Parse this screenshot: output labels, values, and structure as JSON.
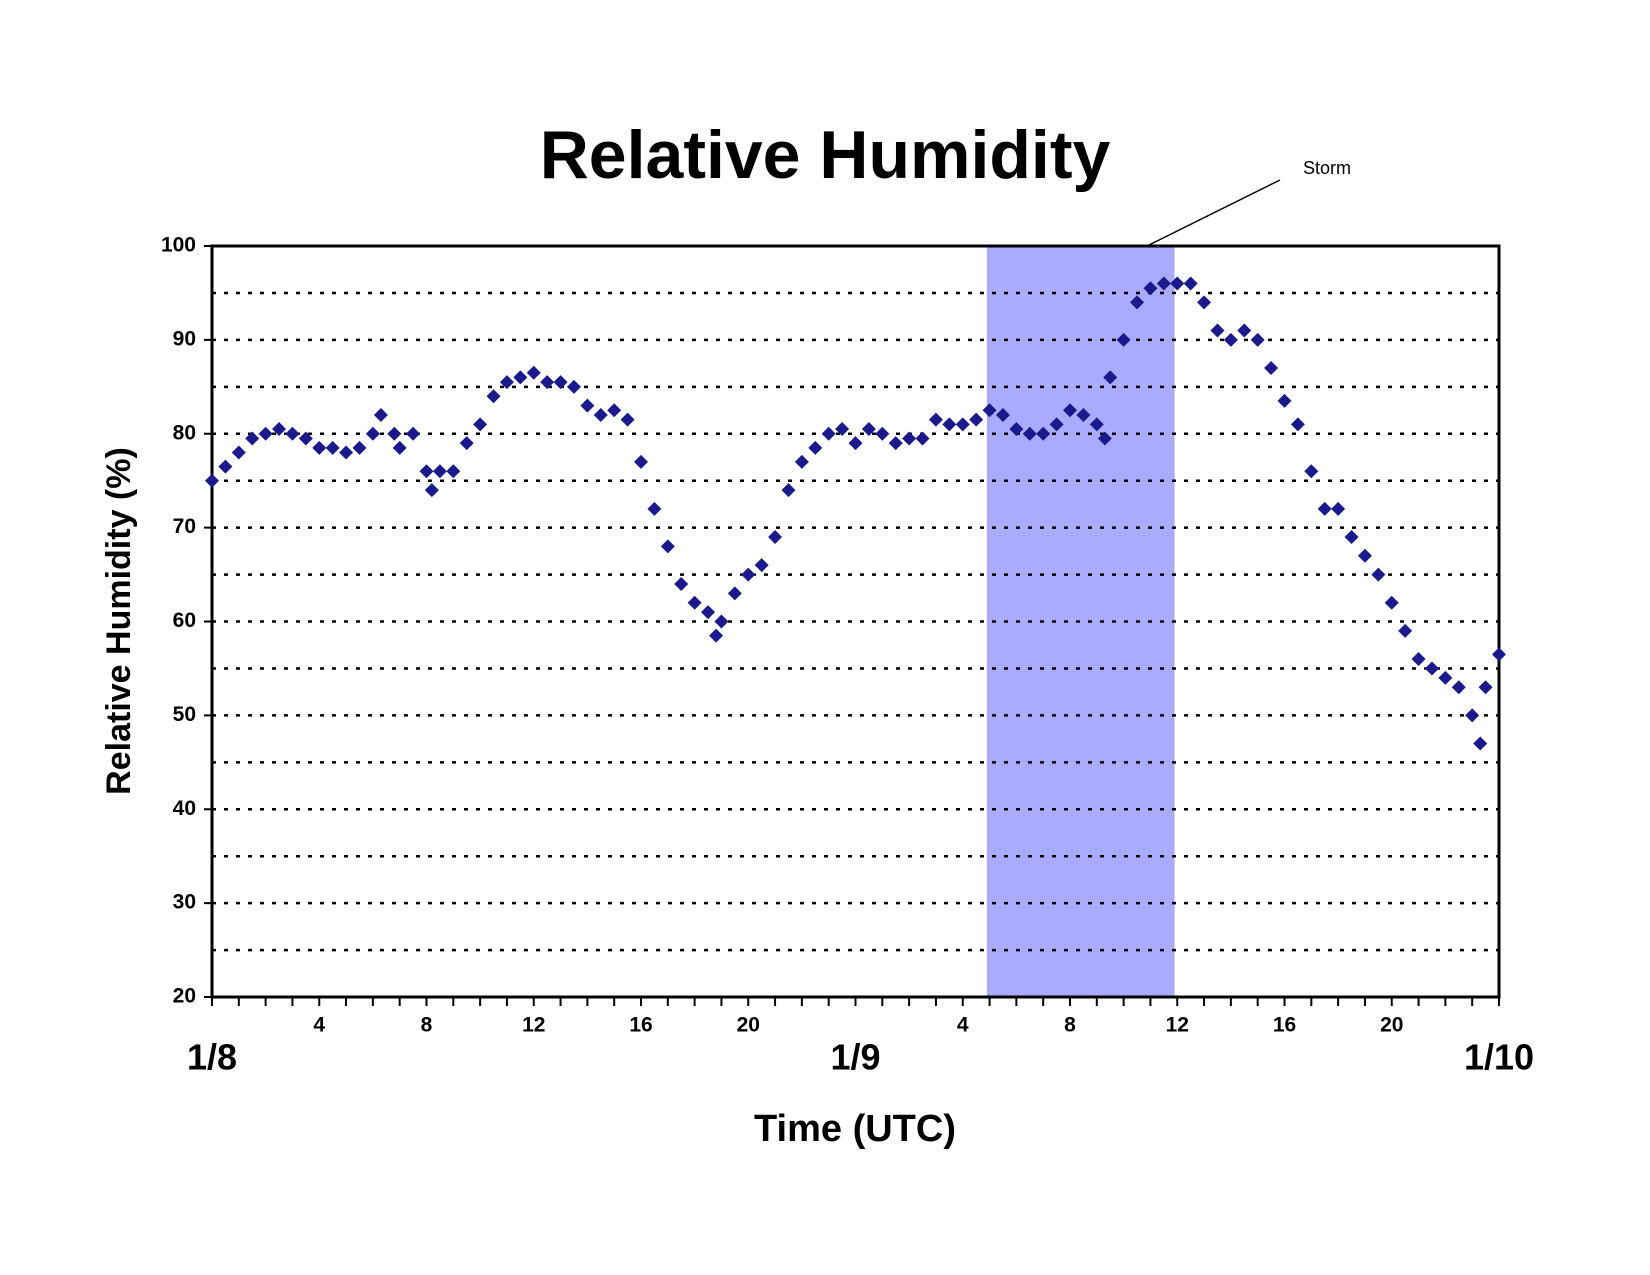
{
  "chart_data": {
    "type": "scatter",
    "title": "Relative Humidity",
    "x_label": "Time (UTC)",
    "y_label": "Relative Humidity (%)",
    "annotation": "Storm",
    "shaded_span": [
      28.9,
      35.9
    ],
    "shade_color": "#aaaaff",
    "xlim": [
      0,
      48
    ],
    "ylim": [
      20,
      100
    ],
    "yticks": [
      20,
      30,
      40,
      50,
      60,
      70,
      80,
      90,
      100
    ],
    "gridlines": [
      25,
      30,
      35,
      40,
      45,
      50,
      55,
      60,
      65,
      70,
      75,
      80,
      85,
      90,
      95
    ],
    "xticks": [
      4,
      8,
      12,
      16,
      20,
      {
        "value": 28,
        "label": "4"
      },
      {
        "value": 32,
        "label": "8"
      },
      {
        "value": 36,
        "label": "12"
      },
      {
        "value": 40,
        "label": "16"
      },
      {
        "value": 44,
        "label": "20"
      }
    ],
    "date_ticks": [
      {
        "value": 0,
        "label": "1/8"
      },
      {
        "value": 24,
        "label": "1/9"
      },
      {
        "value": 48,
        "label": "1/10"
      }
    ],
    "minor_xticks": [
      0,
      1,
      2,
      3,
      4,
      5,
      6,
      7,
      8,
      9,
      10,
      11,
      12,
      13,
      14,
      15,
      16,
      17,
      18,
      19,
      20,
      21,
      22,
      23,
      24,
      25,
      26,
      27,
      28,
      29,
      30,
      31,
      32,
      33,
      34,
      35,
      36,
      37,
      38,
      39,
      40,
      41,
      42,
      43,
      44,
      45,
      46,
      47,
      48
    ],
    "x": [
      0,
      0.5,
      1,
      1.5,
      2,
      2.5,
      3,
      3.5,
      4,
      4.5,
      5,
      5.5,
      6,
      6.3,
      6.8,
      7,
      7.5,
      8,
      8.2,
      8.5,
      9,
      9.5,
      10,
      10.5,
      11,
      11.5,
      12,
      12.5,
      13,
      13.5,
      14,
      14.5,
      15,
      15.5,
      16,
      16.5,
      17,
      17.5,
      18,
      18.5,
      18.8,
      19,
      19.5,
      20,
      20.5,
      21,
      21.5,
      22,
      22.5,
      23,
      23.5,
      24,
      24.5,
      25,
      25.5,
      26,
      26.5,
      27,
      27.5,
      28,
      28.5,
      29,
      29.5,
      30,
      30.5,
      31,
      31.5,
      32,
      32.5,
      33,
      33.3,
      33.5,
      34,
      34.5,
      35,
      35.5,
      36,
      36.5,
      37,
      37.5,
      38,
      38.5,
      39,
      39.5,
      40,
      40.5,
      41,
      41.5,
      42,
      42.5,
      43,
      43.5,
      44,
      44.5,
      45,
      45.5,
      46,
      46.5,
      47,
      47.3,
      47.5,
      48
    ],
    "series": [
      {
        "color": "#1a1a8c",
        "values": [
          75,
          76.5,
          78,
          79.5,
          80,
          80.5,
          80,
          79.5,
          78.5,
          78.5,
          78,
          78.5,
          80,
          82,
          80,
          78.5,
          80,
          76,
          74,
          76,
          76,
          79,
          81,
          84,
          85.5,
          86,
          86.5,
          85.5,
          85.5,
          85,
          83,
          82,
          82.5,
          81.5,
          77,
          72,
          68,
          64,
          62,
          61,
          58.5,
          60,
          63,
          65,
          66,
          69,
          74,
          77,
          78.5,
          80,
          80.5,
          79,
          80.5,
          80,
          79,
          79.5,
          79.5,
          81.5,
          81,
          81,
          81.5,
          82.5,
          82,
          80.5,
          80,
          80,
          81,
          82.5,
          82,
          81,
          79.5,
          86,
          90,
          94,
          95.5,
          96,
          96,
          96,
          94,
          91,
          90,
          91,
          90,
          87,
          83.5,
          81,
          76,
          72,
          72,
          69,
          67,
          65,
          62,
          59,
          56,
          55,
          54,
          53,
          50,
          47,
          53,
          56.5
        ]
      }
    ]
  }
}
